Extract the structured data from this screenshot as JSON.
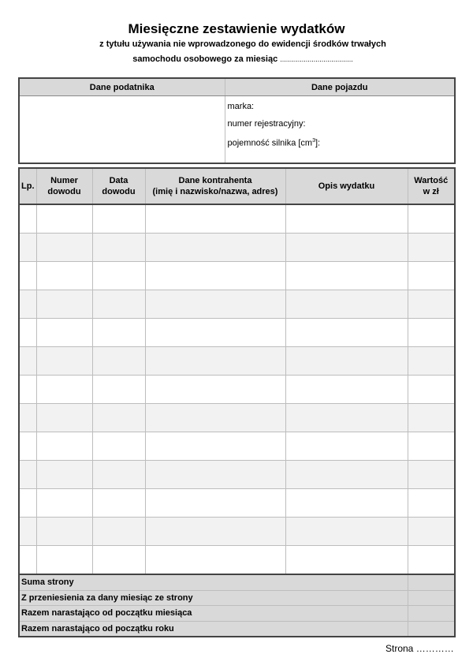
{
  "header": {
    "title": "Miesięczne zestawienie wydatków",
    "subtitle_line1": "z tytułu używania nie wprowadzonego do ewidencji środków trwałych",
    "subtitle_line2": "samochodu  osobowego za miesiąc",
    "subtitle_dots": "....................................."
  },
  "info_table": {
    "taxpayer_header": "Dane podatnika",
    "vehicle_header": "Dane pojazdu",
    "vehicle_fields": {
      "brand": "marka:",
      "registration": "numer rejestracyjny:",
      "engine_prefix": "pojemność silnika [cm",
      "engine_sup": "3",
      "engine_suffix": "]:"
    }
  },
  "expense_table": {
    "columns": [
      "Lp.",
      "Numer dowodu",
      "Data dowodu",
      "Dane kontrahenta (imię i nazwisko/nazwa, adres)",
      "Opis wydatku",
      "Wartość w zł"
    ],
    "columns_lines": [
      [
        "Lp."
      ],
      [
        "Numer",
        "dowodu"
      ],
      [
        "Data",
        "dowodu"
      ],
      [
        "Dane kontrahenta",
        "(imię i nazwisko/nazwa, adres)"
      ],
      [
        "Opis wydatku"
      ],
      [
        "Wartość",
        "w zł"
      ]
    ],
    "empty_rows": 13,
    "summary_rows": [
      "Suma strony",
      "Z przeniesienia za dany miesiąc ze strony",
      "Razem narastająco od początku miesiąca",
      "Razem narastająco od początku roku"
    ]
  },
  "footer": {
    "page_label": "Strona …………"
  },
  "colors": {
    "header_fill": "#d9d9d9",
    "alt_row_fill": "#f2f2f2",
    "border": "#444444"
  }
}
